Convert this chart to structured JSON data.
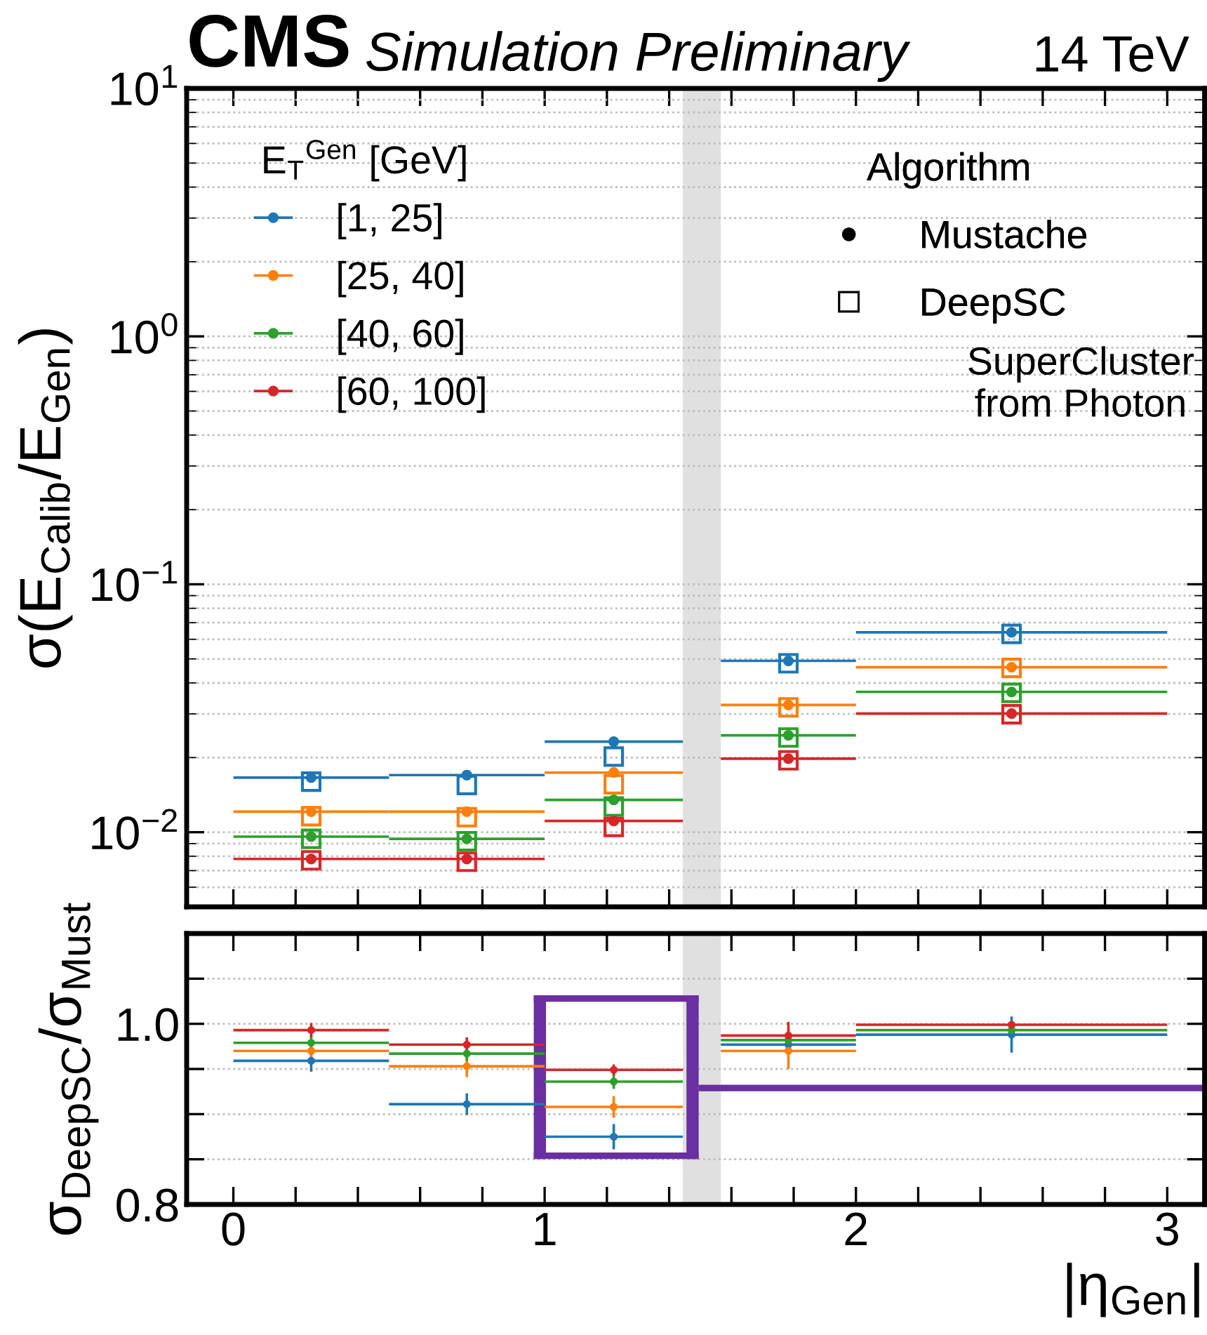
{
  "chart_data": [
    {
      "type": "scatter",
      "title": "CMS",
      "subtitle": "Simulation Preliminary",
      "ylabel": "σ(E$_{Calib}$/E$_{Gen}$)",
      "legend_title": "E$_{T}$$^{Gen}$ [GeV]",
      "legend": "top left",
      "log": "y",
      "grid": "y",
      "tick_labels": "y",
      "annotations": [
        "14 TeV",
        "Algorithm",
        "Mustache",
        "DeepSC",
        "SuperCluster\nfrom Photon"
      ],
      "xlim": [
        -0.15,
        3.12
      ],
      "xticks": [
        {
          "value": 0,
          "label": null
        },
        {
          "value": 0.2,
          "label": null
        },
        {
          "value": 0.4,
          "label": null
        },
        {
          "value": 0.6,
          "label": null
        },
        {
          "value": 0.8,
          "label": null
        },
        {
          "value": 1,
          "label": null
        },
        {
          "value": 1.2,
          "label": null
        },
        {
          "value": 1.4,
          "label": null
        },
        {
          "value": 1.6,
          "label": null
        },
        {
          "value": 1.8,
          "label": null
        },
        {
          "value": 2,
          "label": null
        },
        {
          "value": 2.2,
          "label": null
        },
        {
          "value": 2.4,
          "label": null
        },
        {
          "value": 2.6,
          "label": null
        },
        {
          "value": 2.8,
          "label": null
        },
        {
          "value": 3,
          "label": null
        }
      ],
      "ylim": [
        0.005,
        10
      ],
      "yticks": [
        {
          "value": 0.01,
          "label": "10$^{−2}$"
        },
        {
          "value": 0.1,
          "label": "10$^{−1}$"
        },
        {
          "value": 1,
          "label": "10$^{0}$"
        },
        {
          "value": 10,
          "label": "10$^{1}$"
        }
      ],
      "bands": [
        {
          "axis": "x",
          "from": 1.444,
          "to": 1.566,
          "color": "#e0e0e0"
        }
      ],
      "series": [
        {
          "name": "[1, 25]",
          "color": "#1f77b4",
          "marker": "circle",
          "x": [
            0.25,
            0.75,
            1.222,
            1.783,
            2.5
          ],
          "xerrors": [
            0.25,
            0.25,
            0.222,
            0.217,
            0.5
          ],
          "values": [
            0.0166,
            0.017,
            0.0232,
            0.0491,
            0.064
          ]
        },
        {
          "color": "#1f77b4",
          "marker": "square",
          "x": [
            0.25,
            0.75,
            1.222,
            1.783,
            2.5
          ],
          "values": [
            0.016,
            0.0155,
            0.0202,
            0.048,
            0.0631
          ]
        },
        {
          "name": "[25, 40]",
          "color": "#ff7f0e",
          "marker": "circle",
          "x": [
            0.25,
            0.75,
            1.222,
            1.783,
            2.5
          ],
          "xerrors": [
            0.25,
            0.25,
            0.222,
            0.217,
            0.5
          ],
          "values": [
            0.0121,
            0.0121,
            0.0174,
            0.0326,
            0.0463
          ]
        },
        {
          "color": "#ff7f0e",
          "marker": "square",
          "x": [
            0.25,
            0.75,
            1.222,
            1.783,
            2.5
          ],
          "values": [
            0.0116,
            0.0115,
            0.0156,
            0.0319,
            0.046
          ]
        },
        {
          "name": "[40, 60]",
          "color": "#2ca02c",
          "marker": "circle",
          "x": [
            0.25,
            0.75,
            1.222,
            1.783,
            2.5
          ],
          "xerrors": [
            0.25,
            0.25,
            0.222,
            0.217,
            0.5
          ],
          "values": [
            0.0096,
            0.0094,
            0.0135,
            0.0246,
            0.0368
          ]
        },
        {
          "color": "#2ca02c",
          "marker": "square",
          "x": [
            0.25,
            0.75,
            1.222,
            1.783,
            2.5
          ],
          "values": [
            0.0094,
            0.0092,
            0.0127,
            0.0241,
            0.0365
          ]
        },
        {
          "name": "[60, 100]",
          "color": "#d62728",
          "marker": "circle",
          "x": [
            0.25,
            0.75,
            1.222,
            1.783,
            2.5
          ],
          "xerrors": [
            0.25,
            0.25,
            0.222,
            0.217,
            0.5
          ],
          "values": [
            0.0078,
            0.0078,
            0.0111,
            0.0198,
            0.0301
          ]
        },
        {
          "color": "#d62728",
          "marker": "square",
          "x": [
            0.25,
            0.75,
            1.222,
            1.783,
            2.5
          ],
          "values": [
            0.0077,
            0.0076,
            0.0105,
            0.0195,
            0.0299
          ]
        }
      ]
    },
    {
      "type": "scatter",
      "xlabel": "|η$_{Gen}$|",
      "ylabel": "σ$_{DeepSC}$/σ$_{Must}$",
      "grid": "y",
      "xlim": [
        -0.15,
        3.12
      ],
      "xticks": [
        0,
        {
          "value": 0.2,
          "label": null
        },
        {
          "value": 0.4,
          "label": null
        },
        {
          "value": 0.6,
          "label": null
        },
        {
          "value": 0.8,
          "label": null
        },
        1,
        {
          "value": 1.2,
          "label": null
        },
        {
          "value": 1.4,
          "label": null
        },
        {
          "value": 1.6,
          "label": null
        },
        {
          "value": 1.8,
          "label": null
        },
        2,
        {
          "value": 2.2,
          "label": null
        },
        {
          "value": 2.4,
          "label": null
        },
        {
          "value": 2.6,
          "label": null
        },
        {
          "value": 2.8,
          "label": null
        },
        3
      ],
      "ylim": [
        0.8,
        1.1
      ],
      "yticks": [
        {
          "value": 0.8,
          "label": "0.8"
        },
        {
          "value": 0.85,
          "label": null
        },
        {
          "value": 0.9,
          "label": null
        },
        {
          "value": 0.95,
          "label": null
        },
        {
          "value": 1.0,
          "label": "1.0"
        },
        {
          "value": 1.05,
          "label": null
        }
      ],
      "bands": [
        {
          "axis": "x",
          "from": 1.444,
          "to": 1.566,
          "color": "#e0e0e0"
        }
      ],
      "series": [
        {
          "color": "#1f77b4",
          "marker": "circle",
          "x": [
            0.25,
            0.75,
            1.222,
            1.783,
            2.5
          ],
          "xerrors": [
            0.25,
            0.25,
            0.222,
            0.217,
            0.5
          ],
          "values": [
            0.959,
            0.911,
            0.875,
            0.977,
            0.988
          ],
          "errors": [
            0.012,
            0.012,
            0.014,
            null,
            0.02
          ]
        },
        {
          "color": "#ff7f0e",
          "marker": "circle",
          "x": [
            0.25,
            0.75,
            1.222,
            1.783,
            null
          ],
          "xerrors": [
            0.25,
            0.25,
            0.222,
            0.217,
            null
          ],
          "values": [
            0.97,
            0.953,
            0.908,
            0.97,
            null
          ],
          "errors": [
            0.008,
            0.012,
            0.012,
            0.02,
            null
          ]
        },
        {
          "color": "#2ca02c",
          "marker": "circle",
          "x": [
            0.25,
            0.75,
            1.222,
            1.783,
            2.5
          ],
          "xerrors": [
            0.25,
            0.25,
            0.222,
            0.217,
            0.5
          ],
          "values": [
            0.979,
            0.967,
            0.936,
            0.982,
            0.993
          ],
          "errors": [
            0.008,
            0.008,
            0.008,
            null,
            null
          ]
        },
        {
          "color": "#d62728",
          "marker": "circle",
          "x": [
            0.25,
            0.75,
            1.222,
            1.783,
            2.5
          ],
          "xerrors": [
            0.25,
            0.25,
            0.222,
            0.217,
            0.5
          ],
          "values": [
            0.993,
            0.977,
            0.949,
            0.987,
            0.999
          ],
          "errors": [
            0.008,
            0.008,
            0.006,
            0.015,
            null
          ]
        }
      ]
    }
  ]
}
